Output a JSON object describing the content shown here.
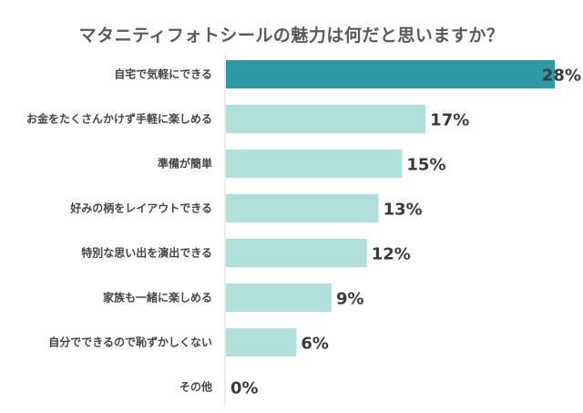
{
  "chart_data": {
    "type": "bar",
    "orientation": "horizontal",
    "title": "マタニティフォトシールの魅力は何だと思いますか？",
    "categories": [
      "自宅で気軽にできる",
      "お金をたくさんかけず手軽に楽しめる",
      "準備が簡単",
      "好みの柄をレイアウトできる",
      "特別な思い出を演出できる",
      "家族も一緒に楽しめる",
      "自分でできるので恥ずかしくない",
      "その他"
    ],
    "values": [
      28,
      17,
      15,
      13,
      12,
      9,
      6,
      0
    ],
    "value_labels": [
      "28%",
      "17%",
      "15%",
      "13%",
      "12%",
      "9%",
      "6%",
      "0%"
    ],
    "xlim": [
      0,
      28
    ],
    "grid": false,
    "legend": "none",
    "colors": {
      "highlight": "#2e9aa5",
      "bar": "#b1dfdb",
      "axis": "#d9d9d9"
    }
  }
}
